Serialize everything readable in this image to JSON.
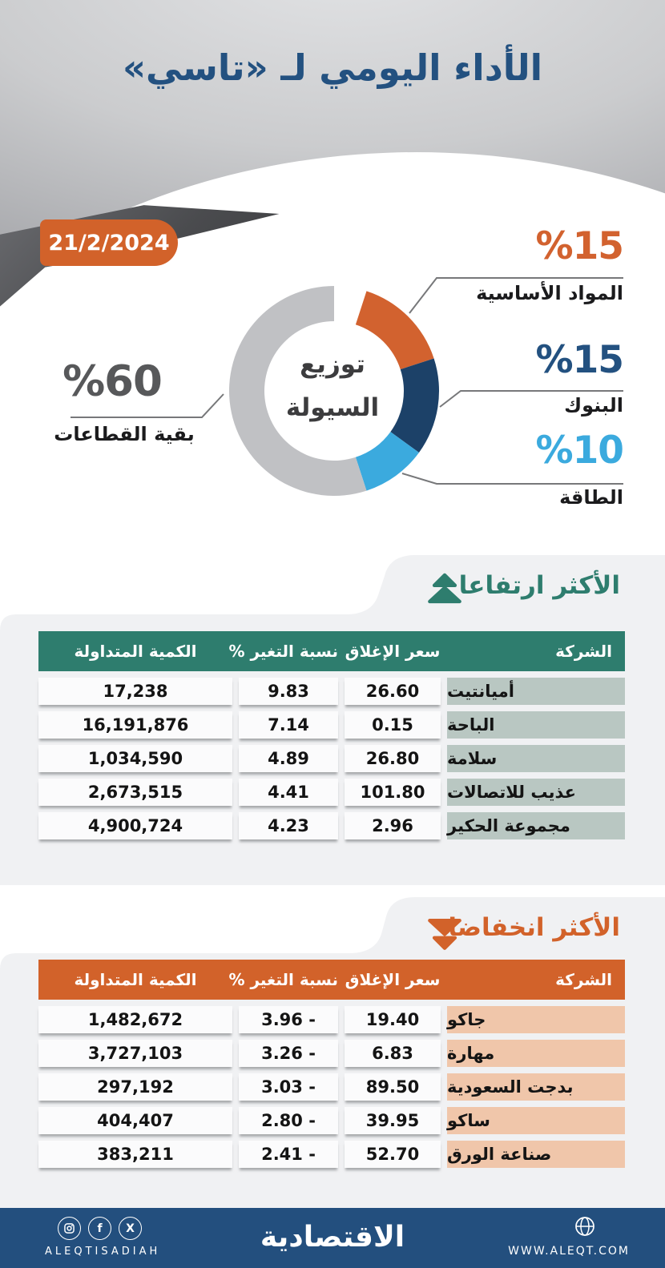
{
  "page": {
    "title": "الأداء اليومي لـ «تاسي»",
    "date": "21/2/2024"
  },
  "chart_data": {
    "type": "pie",
    "title": "توزيع السيولة",
    "center_line1": "توزيع",
    "center_line2": "السيولة",
    "legend_position": "callouts",
    "slices": [
      {
        "label": "المواد الأساسية",
        "value": 15,
        "value_text": "%15",
        "color": "#D2622F",
        "text_color": "#D2622F"
      },
      {
        "label": "البنوك",
        "value": 15,
        "value_text": "%15",
        "color": "#1C4168",
        "text_color": "#235180"
      },
      {
        "label": "الطاقة",
        "value": 10,
        "value_text": "%10",
        "color": "#3BAADE",
        "text_color": "#3BAADE"
      },
      {
        "label": "بقية القطاعات",
        "value": 60,
        "value_text": "%60",
        "color": "#C0C1C4",
        "text_color": "#57585A"
      }
    ]
  },
  "gainers": {
    "title": "الأكثر ارتفاعا",
    "accent": "#2E7D6E",
    "company_cell_color": "#B9C7C2",
    "columns": [
      "الشركة",
      "سعر الإغلاق",
      "نسبة التغير %",
      "الكمية المتداولة"
    ],
    "rows": [
      {
        "company": "أميانتيت",
        "close": "26.60",
        "change": "9.83",
        "volume": "17,238"
      },
      {
        "company": "الباحة",
        "close": "0.15",
        "change": "7.14",
        "volume": "16,191,876"
      },
      {
        "company": "سلامة",
        "close": "26.80",
        "change": "4.89",
        "volume": "1,034,590"
      },
      {
        "company": "عذيب للاتصالات",
        "close": "101.80",
        "change": "4.41",
        "volume": "2,673,515"
      },
      {
        "company": "مجموعة الحكير",
        "close": "2.96",
        "change": "4.23",
        "volume": "4,900,724"
      }
    ]
  },
  "losers": {
    "title": "الأكثر انخفاضا",
    "accent": "#D2622A",
    "company_cell_color": "#F0C6AA",
    "columns": [
      "الشركة",
      "سعر الإغلاق",
      "نسبة التغير %",
      "الكمية المتداولة"
    ],
    "rows": [
      {
        "company": "جاكو",
        "close": "19.40",
        "change": "3.96 -",
        "volume": "1,482,672"
      },
      {
        "company": "مهارة",
        "close": "6.83",
        "change": "3.26 -",
        "volume": "3,727,103"
      },
      {
        "company": "بدجت السعودية",
        "close": "89.50",
        "change": "3.03 -",
        "volume": "297,192"
      },
      {
        "company": "ساكو",
        "close": "39.95",
        "change": "2.80 -",
        "volume": "404,407"
      },
      {
        "company": "صناعة الورق",
        "close": "52.70",
        "change": "2.41 -",
        "volume": "383,211"
      }
    ]
  },
  "footer": {
    "handle": "ALEQTISADIAH",
    "brand": "الاقتصادية",
    "website": "WWW.ALEQT.COM",
    "background": "#234F7E",
    "social_icons": [
      "instagram-icon",
      "facebook-icon",
      "x-icon"
    ],
    "facebook_glyph": "f",
    "x_glyph": "X"
  }
}
